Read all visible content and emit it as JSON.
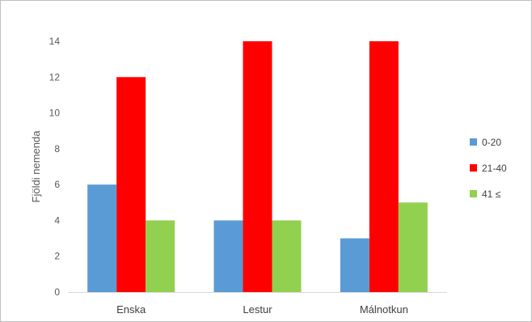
{
  "chart_data": {
    "type": "bar",
    "title": "",
    "xlabel": "",
    "ylabel": "Fjöldi nemenda",
    "categories": [
      "Enska",
      "Lestur",
      "Málnotkun"
    ],
    "series": [
      {
        "name": "0-20",
        "color": "#5b9bd5",
        "values": [
          6,
          4,
          3
        ]
      },
      {
        "name": "21-40",
        "color": "#ff0000",
        "values": [
          12,
          14,
          14
        ]
      },
      {
        "name": "41 ≤",
        "color": "#92d050",
        "values": [
          4,
          4,
          5
        ]
      }
    ],
    "ylim": [
      0,
      14
    ],
    "yticks": [
      0,
      2,
      4,
      6,
      8,
      10,
      12,
      14
    ],
    "grid": false,
    "legend_position": "right"
  }
}
